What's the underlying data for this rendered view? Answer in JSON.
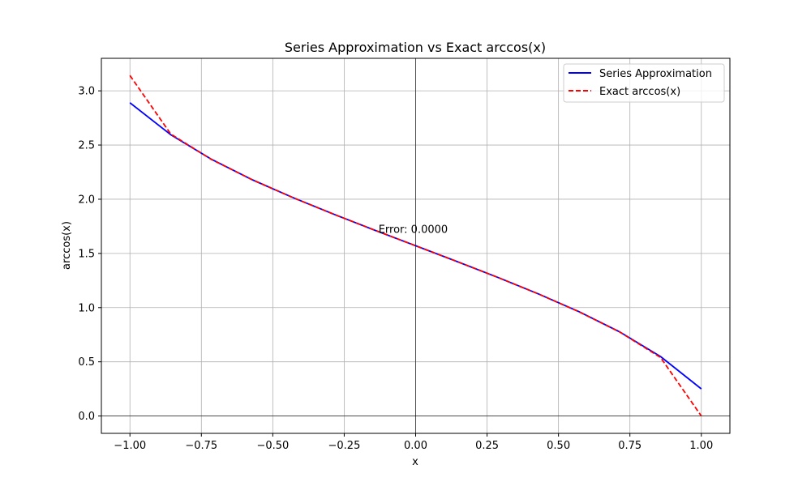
{
  "chart_data": {
    "type": "line",
    "title": "Series Approximation vs Exact arccos(x)",
    "xlabel": "x",
    "ylabel": "arccos(x)",
    "xlim": [
      -1.1,
      1.1
    ],
    "ylim": [
      -0.16,
      3.3
    ],
    "xticks": [
      -1.0,
      -0.75,
      -0.5,
      -0.25,
      0.0,
      0.25,
      0.5,
      0.75,
      1.0
    ],
    "xtick_labels": [
      "−1.00",
      "−0.75",
      "−0.50",
      "−0.25",
      "0.00",
      "0.25",
      "0.50",
      "0.75",
      "1.00"
    ],
    "yticks": [
      0.0,
      0.5,
      1.0,
      1.5,
      2.0,
      2.5,
      3.0
    ],
    "ytick_labels": [
      "0.0",
      "0.5",
      "1.0",
      "1.5",
      "2.0",
      "2.5",
      "3.0"
    ],
    "grid": true,
    "legend_position": "top-right",
    "annotation": {
      "text": "Error: 0.0000",
      "x": -0.13,
      "y": 1.69
    },
    "series": [
      {
        "name": "Series Approximation",
        "color": "#0000ff",
        "style": "solid",
        "x": [
          -1.0,
          -0.8571,
          -0.7143,
          -0.5714,
          -0.4286,
          -0.2857,
          -0.1429,
          0.0,
          0.1429,
          0.2857,
          0.4286,
          0.5714,
          0.7143,
          0.8571,
          1.0
        ],
        "y": [
          2.89,
          2.595,
          2.368,
          2.179,
          2.014,
          1.861,
          1.714,
          1.571,
          1.427,
          1.281,
          1.128,
          0.963,
          0.776,
          0.549,
          0.25
        ]
      },
      {
        "name": "Exact arccos(x)",
        "color": "#ff0000",
        "style": "dashed",
        "x": [
          -1.0,
          -0.8571,
          -0.7143,
          -0.5714,
          -0.4286,
          -0.2857,
          -0.1429,
          0.0,
          0.1429,
          0.2857,
          0.4286,
          0.5714,
          0.7143,
          0.8571,
          1.0
        ],
        "y": [
          3.1416,
          2.6011,
          2.3664,
          2.1792,
          2.0139,
          1.8605,
          1.7142,
          1.5708,
          1.4274,
          1.2811,
          1.1277,
          0.9624,
          0.7752,
          0.5405,
          0.0
        ]
      }
    ]
  }
}
